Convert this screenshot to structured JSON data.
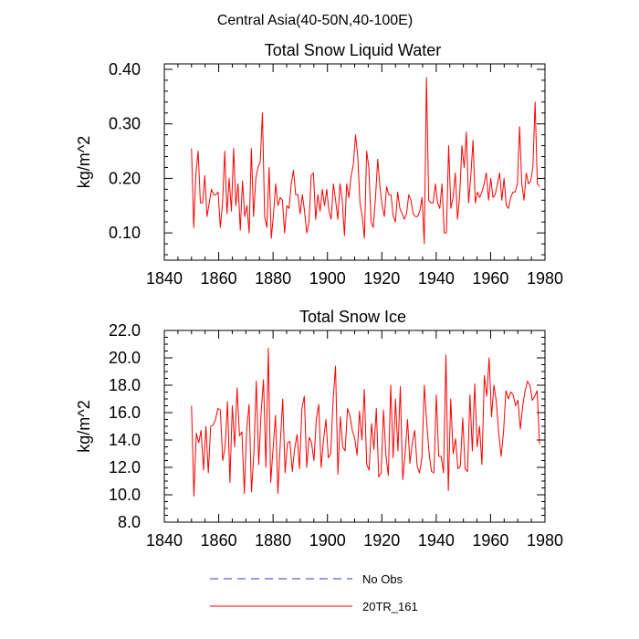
{
  "figure_title": "Central Asia(40-50N,40-100E)",
  "legend": [
    {
      "label": "No Obs",
      "color": "#3333cc",
      "dashed": true
    },
    {
      "label": "20TR_161",
      "color": "#ff0000",
      "dashed": false
    }
  ],
  "chart_data": [
    {
      "type": "line",
      "title": "Total Snow Liquid Water",
      "xlabel": "",
      "ylabel": "kg/m^2",
      "xlim": [
        1840,
        1980
      ],
      "ylim": [
        0.05,
        0.41
      ],
      "xticks": [
        1840,
        1860,
        1880,
        1900,
        1920,
        1940,
        1960,
        1980
      ],
      "yticks": [
        0.1,
        0.2,
        0.3,
        0.4
      ],
      "ytick_labels": [
        "0.10",
        "0.20",
        "0.30",
        "0.40"
      ],
      "yminor_step": 0.02,
      "xminor_step": 5,
      "series": [
        {
          "name": "20TR_161",
          "color": "#ff0000",
          "x_start": 1850,
          "values": [
            0.255,
            0.11,
            0.21,
            0.25,
            0.155,
            0.155,
            0.205,
            0.13,
            0.155,
            0.18,
            0.17,
            0.17,
            0.175,
            0.11,
            0.155,
            0.25,
            0.135,
            0.2,
            0.14,
            0.255,
            0.15,
            0.19,
            0.105,
            0.195,
            0.13,
            0.15,
            0.1,
            0.255,
            0.13,
            0.2,
            0.22,
            0.23,
            0.32,
            0.13,
            0.11,
            0.22,
            0.09,
            0.135,
            0.19,
            0.15,
            0.165,
            0.16,
            0.1,
            0.15,
            0.145,
            0.19,
            0.215,
            0.17,
            0.17,
            0.135,
            0.17,
            0.14,
            0.1,
            0.12,
            0.205,
            0.21,
            0.125,
            0.17,
            0.14,
            0.18,
            0.15,
            0.18,
            0.14,
            0.125,
            0.19,
            0.16,
            0.125,
            0.19,
            0.16,
            0.095,
            0.19,
            0.165,
            0.205,
            0.225,
            0.28,
            0.24,
            0.155,
            0.13,
            0.09,
            0.25,
            0.22,
            0.12,
            0.11,
            0.165,
            0.235,
            0.185,
            0.15,
            0.13,
            0.185,
            0.17,
            0.17,
            0.13,
            0.12,
            0.175,
            0.145,
            0.135,
            0.125,
            0.135,
            0.17,
            0.16,
            0.135,
            0.13,
            0.13,
            0.14,
            0.165,
            0.08,
            0.385,
            0.16,
            0.155,
            0.155,
            0.19,
            0.155,
            0.145,
            0.19,
            0.1,
            0.1,
            0.26,
            0.145,
            0.165,
            0.21,
            0.125,
            0.17,
            0.26,
            0.22,
            0.285,
            0.155,
            0.205,
            0.27,
            0.155,
            0.175,
            0.165,
            0.175,
            0.19,
            0.21,
            0.16,
            0.2,
            0.165,
            0.17,
            0.19,
            0.21,
            0.16,
            0.2,
            0.15,
            0.145,
            0.165,
            0.175,
            0.175,
            0.19,
            0.295,
            0.19,
            0.16,
            0.21,
            0.19,
            0.195,
            0.22,
            0.34,
            0.19,
            0.185
          ],
          "x_end": 1978
        }
      ]
    },
    {
      "type": "line",
      "title": "Total Snow Ice",
      "xlabel": "",
      "ylabel": "kg/m^2",
      "xlim": [
        1840,
        1980
      ],
      "ylim": [
        8.0,
        22.0
      ],
      "xticks": [
        1840,
        1860,
        1880,
        1900,
        1920,
        1940,
        1960,
        1980
      ],
      "yticks": [
        8.0,
        10.0,
        12.0,
        14.0,
        16.0,
        18.0,
        20.0,
        22.0
      ],
      "ytick_labels": [
        "8.0",
        "10.0",
        "12.0",
        "14.0",
        "16.0",
        "18.0",
        "20.0",
        "22.0"
      ],
      "yminor_step": 0.5,
      "xminor_step": 5,
      "series": [
        {
          "name": "20TR_161",
          "color": "#ff0000",
          "x_start": 1850,
          "values": [
            16.5,
            9.9,
            14.5,
            13.8,
            14.7,
            11.8,
            15.0,
            11.6,
            15.0,
            15.1,
            15.5,
            16.3,
            16.2,
            12.5,
            13.5,
            16.8,
            10.9,
            16.5,
            13.5,
            17.8,
            14.3,
            14.6,
            10.1,
            14.8,
            16.6,
            10.2,
            13.1,
            18.3,
            12.2,
            16.0,
            18.4,
            12.0,
            20.7,
            10.9,
            13.4,
            15.8,
            10.1,
            13.8,
            17.0,
            11.6,
            13.8,
            13.9,
            11.7,
            13.4,
            14.4,
            11.9,
            16.3,
            17.2,
            12.0,
            14.2,
            13.8,
            12.5,
            15.5,
            16.6,
            12.0,
            14.0,
            15.5,
            12.7,
            13.0,
            16.9,
            19.4,
            11.5,
            15.7,
            13.5,
            13.2,
            16.3,
            15.8,
            14.7,
            14.1,
            12.9,
            16.1,
            14.0,
            17.7,
            12.2,
            11.8,
            15.2,
            13.3,
            16.3,
            11.3,
            11.6,
            16.2,
            12.9,
            11.4,
            18.0,
            12.7,
            17.0,
            13.2,
            17.9,
            11.1,
            13.0,
            15.5,
            12.3,
            13.8,
            14.7,
            12.1,
            11.6,
            12.7,
            18.0,
            15.3,
            13.0,
            11.7,
            11.6,
            17.3,
            12.8,
            12.8,
            11.6,
            20.2,
            10.3,
            17.0,
            13.0,
            14.1,
            11.9,
            12.1,
            15.6,
            11.9,
            11.7,
            17.3,
            13.2,
            18.1,
            13.5,
            15.0,
            12.2,
            18.7,
            17.2,
            20.0,
            15.7,
            18.0,
            16.8,
            14.5,
            12.8,
            14.6,
            17.6,
            17.0,
            17.5,
            17.3,
            16.5,
            16.9,
            14.8,
            16.5,
            17.6,
            18.3,
            18.0,
            16.9,
            17.2,
            17.6,
            13.7
          ],
          "x_end": 1978
        }
      ]
    }
  ]
}
